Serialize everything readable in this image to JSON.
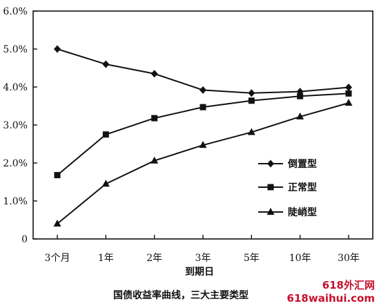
{
  "chart_data": {
    "type": "line",
    "categories": [
      "3个月",
      "1年",
      "2年",
      "3年",
      "5年",
      "10年",
      "30年"
    ],
    "series": [
      {
        "name": "倒置型",
        "marker": "diamond",
        "values": [
          5.0,
          4.6,
          4.35,
          3.92,
          3.84,
          3.88,
          3.99
        ]
      },
      {
        "name": "正常型",
        "marker": "square",
        "values": [
          1.68,
          2.75,
          3.18,
          3.47,
          3.64,
          3.76,
          3.83
        ]
      },
      {
        "name": "陡峭型",
        "marker": "triangle",
        "values": [
          0.4,
          1.45,
          2.06,
          2.47,
          2.81,
          3.22,
          3.58
        ]
      }
    ],
    "yticks": [
      "6.0%",
      "5.0%",
      "4.0%",
      "3.0%",
      "2.0%",
      "1.0%",
      "0"
    ],
    "ylim": [
      0,
      6
    ],
    "xlabel": "到期日",
    "ylabel": "",
    "grid": false,
    "legend_position": "right-middle",
    "line_color": "#111111"
  },
  "caption": "国债收益率曲线，三大主要类型",
  "watermark": {
    "line1": "618外汇网",
    "line2": "618waihui.com"
  }
}
